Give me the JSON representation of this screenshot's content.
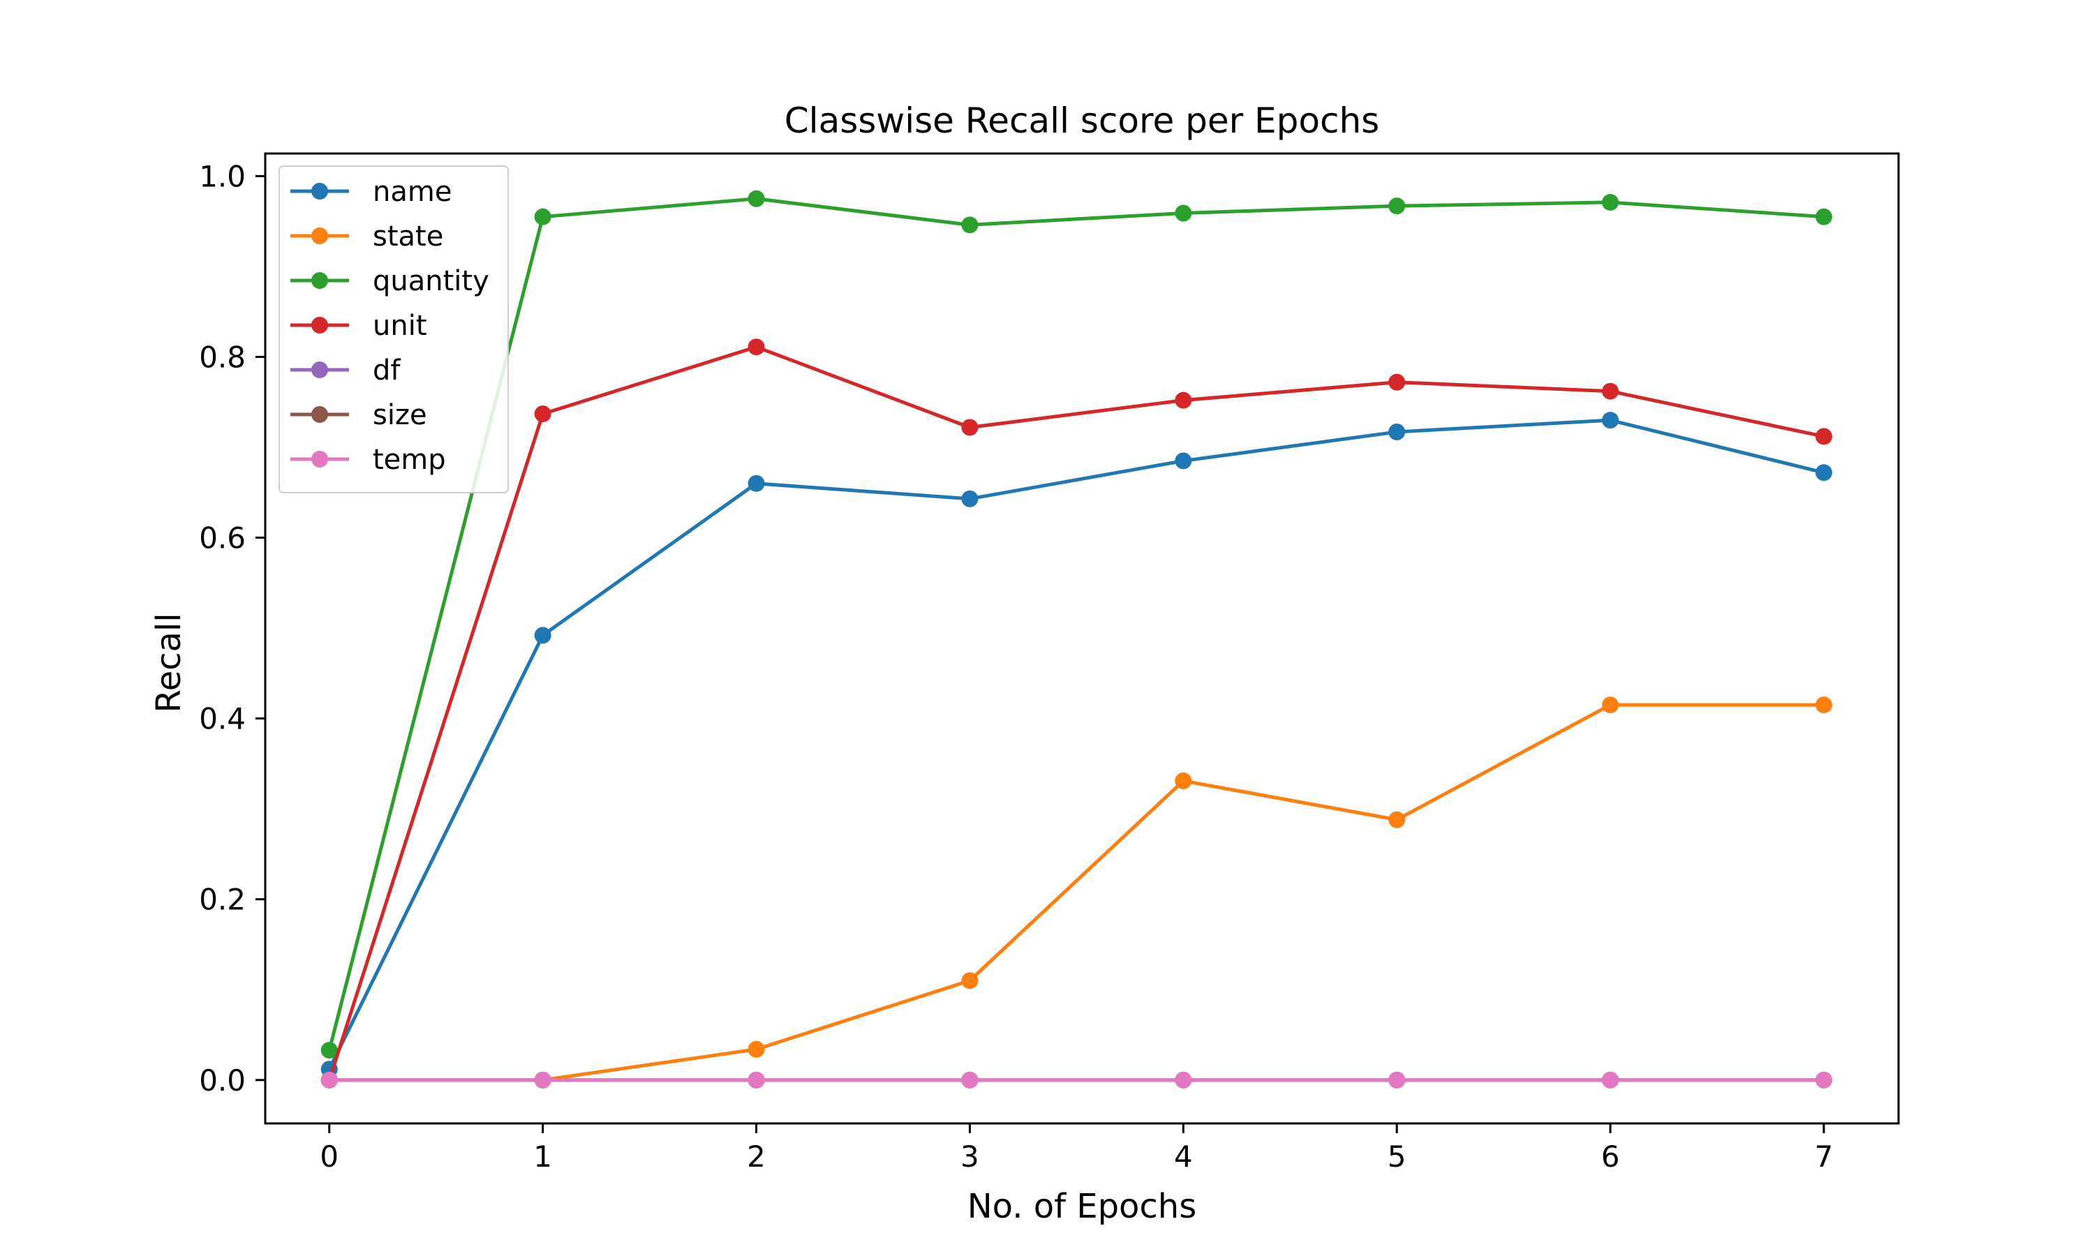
{
  "chart_data": {
    "type": "line",
    "title": "Classwise Recall score per Epochs",
    "xlabel": "No. of Epochs",
    "ylabel": "Recall",
    "x": [
      0,
      1,
      2,
      3,
      4,
      5,
      6,
      7
    ],
    "xlim": [
      -0.3,
      7.35
    ],
    "ylim": [
      -0.048,
      1.025
    ],
    "xticks": [
      "0",
      "1",
      "2",
      "3",
      "4",
      "5",
      "6",
      "7"
    ],
    "yticks": [
      "0.0",
      "0.2",
      "0.4",
      "0.6",
      "0.8",
      "1.0"
    ],
    "legend_position": "top-left",
    "grid": false,
    "series": [
      {
        "name": "name",
        "color": "#1f77b4",
        "values": [
          0.012,
          0.492,
          0.66,
          0.643,
          0.685,
          0.717,
          0.73,
          0.672
        ]
      },
      {
        "name": "state",
        "color": "#ff7f0e",
        "values": [
          0.0,
          0.0,
          0.034,
          0.11,
          0.331,
          0.288,
          0.415,
          0.415
        ]
      },
      {
        "name": "quantity",
        "color": "#2ca02c",
        "values": [
          0.033,
          0.955,
          0.975,
          0.946,
          0.959,
          0.967,
          0.971,
          0.955
        ]
      },
      {
        "name": "unit",
        "color": "#d62728",
        "values": [
          0.0,
          0.737,
          0.811,
          0.722,
          0.752,
          0.772,
          0.762,
          0.712
        ]
      },
      {
        "name": "df",
        "color": "#9467bd",
        "values": [
          0.0,
          0.0,
          0.0,
          0.0,
          0.0,
          0.0,
          0.0,
          0.0
        ]
      },
      {
        "name": "size",
        "color": "#8c564b",
        "values": [
          0.0,
          0.0,
          0.0,
          0.0,
          0.0,
          0.0,
          0.0,
          0.0
        ]
      },
      {
        "name": "temp",
        "color": "#e377c2",
        "values": [
          0.0,
          0.0,
          0.0,
          0.0,
          0.0,
          0.0,
          0.0,
          0.0
        ]
      }
    ]
  }
}
